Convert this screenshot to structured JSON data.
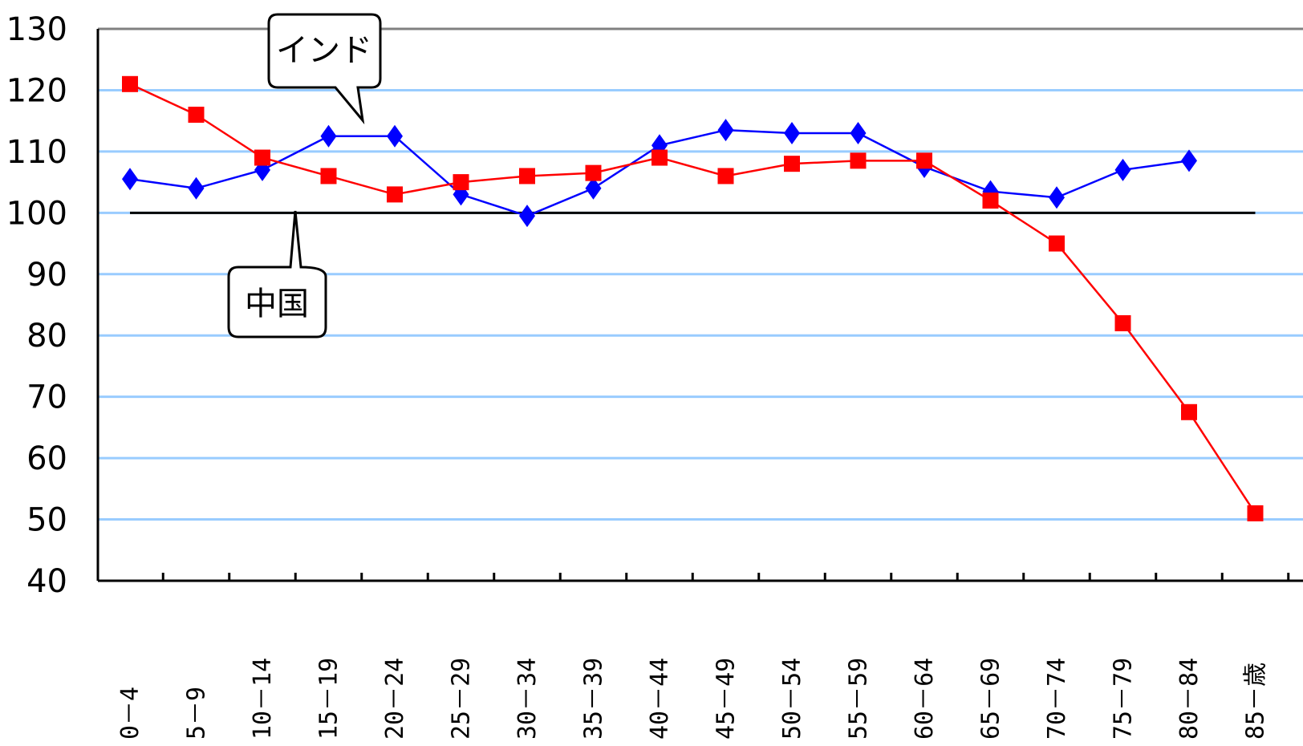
{
  "chart_data": {
    "type": "line",
    "categories": [
      "0－4",
      "5－9",
      "10－14",
      "15－19",
      "20－24",
      "25－29",
      "30－34",
      "35－39",
      "40－44",
      "45－49",
      "50－54",
      "55－59",
      "60－64",
      "65－69",
      "70－74",
      "75－79",
      "80－84",
      "85－歳"
    ],
    "ylim": [
      40,
      130
    ],
    "yticks": [
      40,
      50,
      60,
      70,
      80,
      90,
      100,
      110,
      120,
      130
    ],
    "reference_value": 100,
    "grid": true,
    "series": [
      {
        "name": "インド",
        "color": "#0000ff",
        "marker": "diamond",
        "values": [
          105.5,
          104,
          107,
          112.5,
          112.5,
          103,
          99.5,
          104,
          111,
          113.5,
          113,
          113,
          107.5,
          103.5,
          102.5,
          107,
          108.5,
          null
        ]
      },
      {
        "name": "中国",
        "color": "#ff0000",
        "marker": "square",
        "values": [
          121,
          116,
          109,
          106,
          103,
          105,
          106,
          106.5,
          109,
          106,
          108,
          108.5,
          108.5,
          102,
          95,
          82,
          67.5,
          51
        ]
      }
    ],
    "annotations": [
      {
        "text": "インド",
        "series": "インド"
      },
      {
        "text": "中国",
        "series": "中国"
      }
    ]
  },
  "colors": {
    "grid": "#99ccff",
    "axis": "#000000",
    "reference_line": "#000000",
    "top_border": "#808080"
  }
}
